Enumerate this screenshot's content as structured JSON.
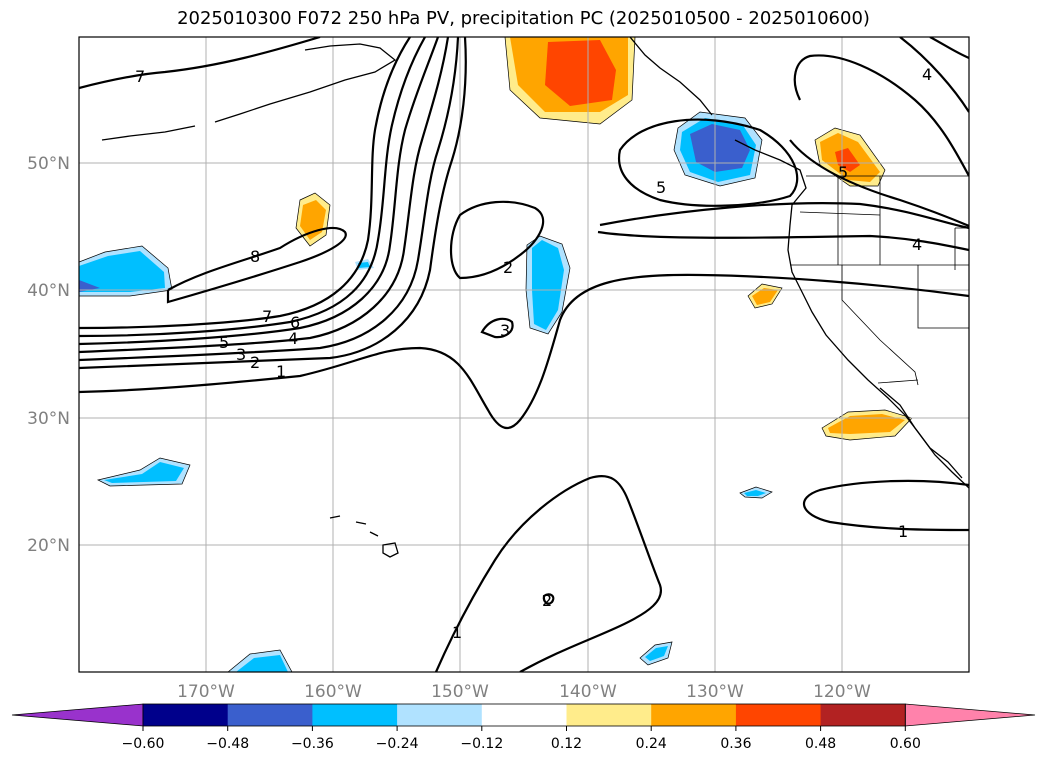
{
  "title": "2025010300 F072 250 hPa PV, precipitation PC (2025010500 - 2025010600)",
  "map": {
    "lon_labels": [
      "170°W",
      "160°W",
      "150°W",
      "140°W",
      "130°W",
      "120°W"
    ],
    "lat_labels": [
      "50°N",
      "40°N",
      "30°N",
      "20°N"
    ],
    "contour_labels": {
      "c7_top": "7",
      "c8": "8",
      "c7_mid": "7",
      "c6": "6",
      "c5_left": "5",
      "c4_left": "4",
      "c3_left": "3",
      "c2_left": "2",
      "c1_left": "1",
      "c2_center": "2",
      "c3_center": "3",
      "c5_pnw": "5",
      "c4_topright": "4",
      "c4_right": "4",
      "c5_right": "5",
      "c1_right": "1",
      "c1_bottom": "1",
      "c2_bottom": "2"
    }
  },
  "colorbar": {
    "colors": [
      "#9932cc",
      "#00008b",
      "#3a5fcd",
      "#00bfff",
      "#b0e2ff",
      "#ffffff",
      "#ffec8b",
      "#ffa500",
      "#ff4500",
      "#b22222",
      "#ff82ab"
    ],
    "ticks": [
      "−0.60",
      "−0.48",
      "−0.36",
      "−0.24",
      "−0.12",
      "0.12",
      "0.24",
      "0.36",
      "0.48",
      "0.60"
    ]
  }
}
